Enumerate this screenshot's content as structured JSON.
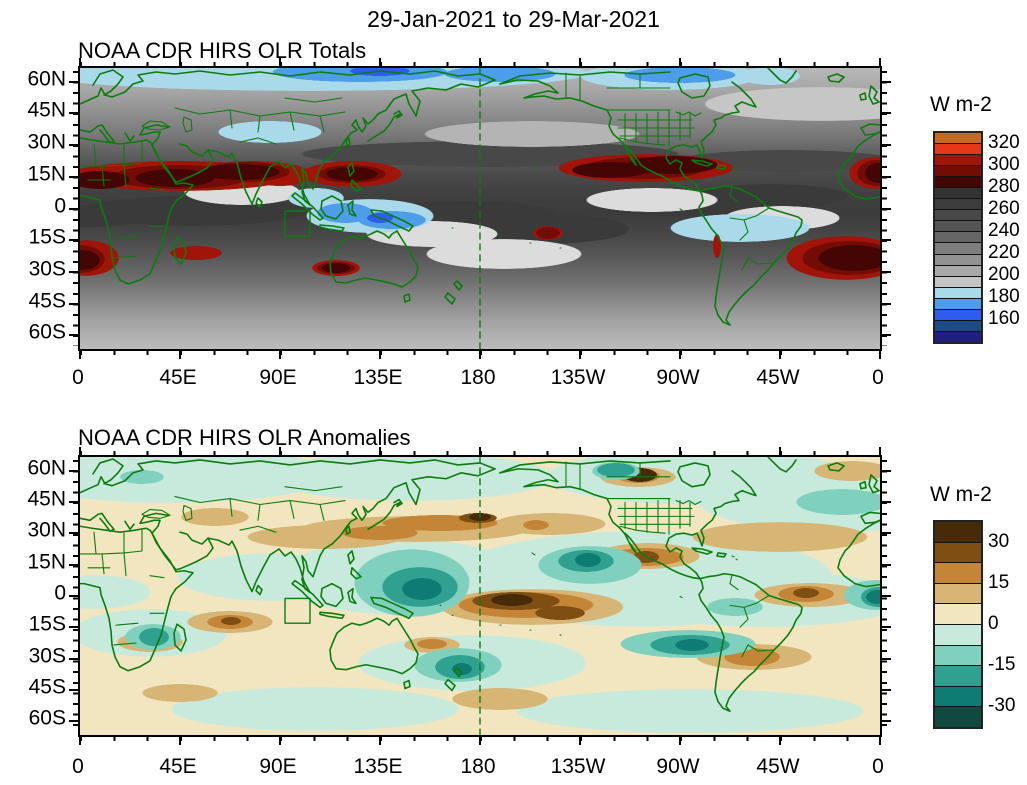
{
  "figure_title": "29-Jan-2021 to 29-Mar-2021",
  "map": {
    "coastline_color": "#0b7d0c",
    "frame_color": "#000000",
    "dateline_label": "180"
  },
  "panels": [
    {
      "title": "NOAA CDR HIRS OLR Totals",
      "y_ticks": [
        "60N",
        "45N",
        "30N",
        "15N",
        "0",
        "15S",
        "30S",
        "45S",
        "60S"
      ],
      "x_ticks": [
        "0",
        "45E",
        "90E",
        "135E",
        "180",
        "135W",
        "90W",
        "45W",
        "0"
      ],
      "colorbar": {
        "title": "W m-2",
        "labels": [
          "320",
          "300",
          "280",
          "260",
          "240",
          "220",
          "200",
          "180",
          "160"
        ],
        "colors": [
          "#C8691F",
          "#E6371B",
          "#A01409",
          "#740C06",
          "#450505",
          "#333333",
          "#3D3D3D",
          "#484848",
          "#555555",
          "#666666",
          "#7E7E7E",
          "#929292",
          "#A8A8A8",
          "#C4C4C4",
          "#AAD9EA",
          "#4D9DE8",
          "#2F5CF0",
          "#1B4A85",
          "#201F7D"
        ]
      }
    },
    {
      "title": "NOAA CDR HIRS OLR Anomalies",
      "y_ticks": [
        "60N",
        "45N",
        "30N",
        "15N",
        "0",
        "15S",
        "30S",
        "45S",
        "60S"
      ],
      "x_ticks": [
        "0",
        "45E",
        "90E",
        "135E",
        "180",
        "135W",
        "90W",
        "45W",
        "0"
      ],
      "colorbar": {
        "title": "W m-2",
        "labels": [
          "30",
          "15",
          "0",
          "-15",
          "-30"
        ],
        "colors": [
          "#472B09",
          "#7F4E12",
          "#C48536",
          "#D7B675",
          "#F2E6C1",
          "#C7EADD",
          "#7FD0BC",
          "#30A191",
          "#0E7C72",
          "#104A3F"
        ]
      }
    }
  ],
  "chart_data": [
    {
      "type": "heatmap",
      "title": "NOAA CDR HIRS OLR Totals",
      "subtitle": "29-Jan-2021 to 29-Mar-2021",
      "units": "W m-2",
      "x_tick_labels": [
        "0",
        "45E",
        "90E",
        "135E",
        "180",
        "135W",
        "90W",
        "45W",
        "0"
      ],
      "y_tick_labels": [
        "60N",
        "45N",
        "30N",
        "15N",
        "0",
        "15S",
        "30S",
        "45S",
        "60S"
      ],
      "colorbar_tick_values": [
        320,
        300,
        280,
        260,
        240,
        220,
        200,
        180,
        160
      ],
      "contour_interval": 10,
      "value_range_shown": [
        150,
        330
      ],
      "legend_position": "right"
    },
    {
      "type": "heatmap",
      "title": "NOAA CDR HIRS OLR Anomalies",
      "subtitle": "29-Jan-2021 to 29-Mar-2021",
      "units": "W m-2",
      "x_tick_labels": [
        "0",
        "45E",
        "90E",
        "135E",
        "180",
        "135W",
        "90W",
        "45W",
        "0"
      ],
      "y_tick_labels": [
        "60N",
        "45N",
        "30N",
        "15N",
        "0",
        "15S",
        "30S",
        "45S",
        "60S"
      ],
      "colorbar_tick_values": [
        30,
        15,
        0,
        -15,
        -30
      ],
      "contour_interval": 7.5,
      "value_range_shown": [
        -37.5,
        37.5
      ],
      "legend_position": "right"
    }
  ]
}
